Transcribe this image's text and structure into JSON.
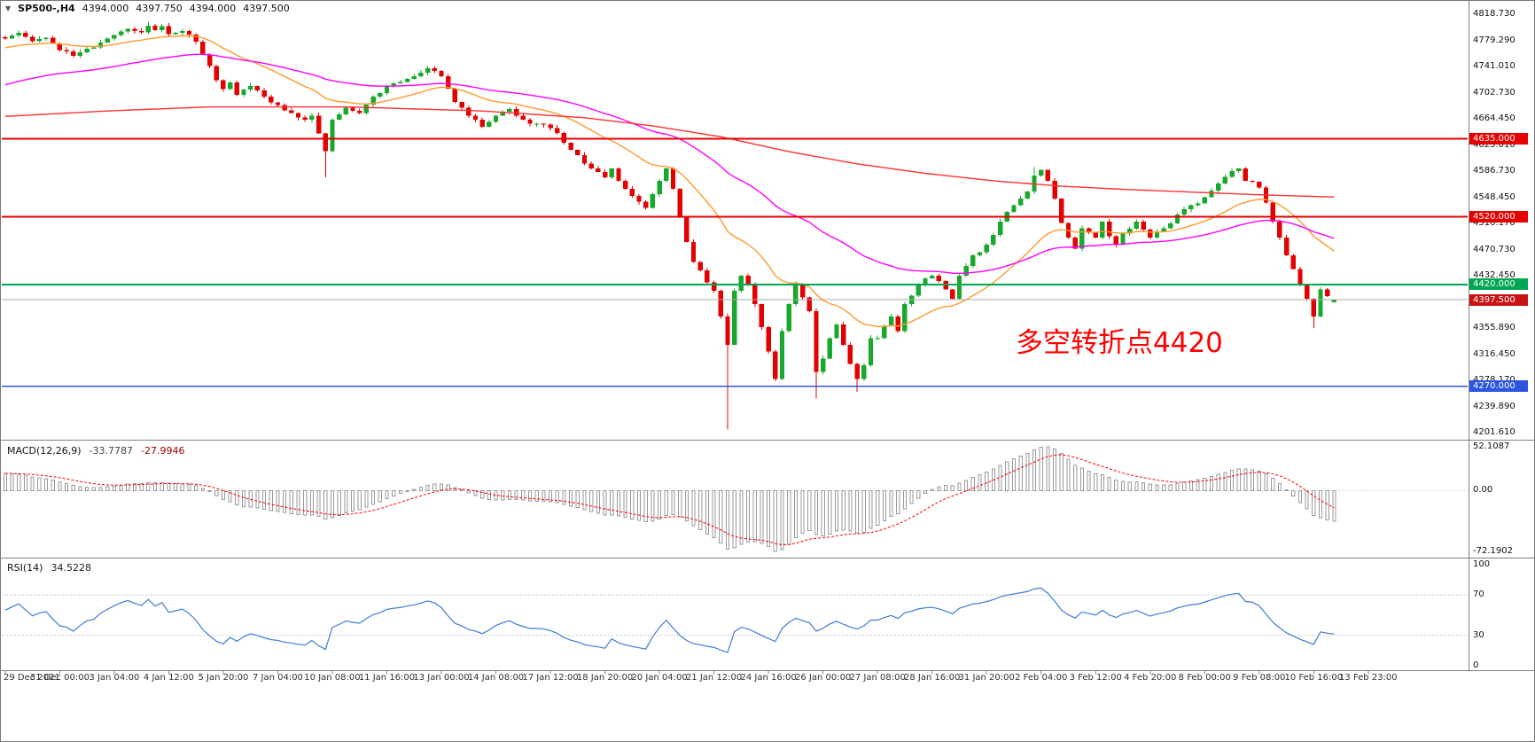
{
  "header": {
    "dropdown_icon": "▼",
    "title": "SP500-,H4",
    "open": "4394.000",
    "high": "4397.750",
    "low": "4394.000",
    "close": "4397.500"
  },
  "colors": {
    "background": "#FFFFFF",
    "candle_up": "#18A82C",
    "candle_down": "#E30000",
    "ma_fast": "#FF9A2E",
    "ma_medium": "#FF00FF",
    "ma_slow": "#FF3030",
    "current_price_line": "#A8A8A8",
    "current_price_tag": "#C81414",
    "macd_histogram": "#999999",
    "macd_signal": "#FF0000",
    "rsi_line": "#3E7BD6",
    "axis_text": "#111111",
    "separator": "#808080"
  },
  "chart_data": {
    "type": "candlestick",
    "title": "SP500-,H4",
    "symbol": "SP500-",
    "timeframe": "H4",
    "ohlc_display": {
      "open": 4394.0,
      "high": 4397.75,
      "low": 4394.0,
      "close": 4397.5
    },
    "n_bars": 196,
    "x_label_every_bars": 8,
    "x_labels": [
      "29 Dec 2021",
      "31 Dec 00:00",
      "3 Jan 04:00",
      "4 Jan 12:00",
      "5 Jan 20:00",
      "7 Jan 04:00",
      "10 Jan 08:00",
      "11 Jan 16:00",
      "13 Jan 00:00",
      "14 Jan 08:00",
      "17 Jan 12:00",
      "18 Jan 20:00",
      "20 Jan 04:00",
      "21 Jan 12:00",
      "24 Jan 16:00",
      "26 Jan 00:00",
      "27 Jan 08:00",
      "28 Jan 16:00",
      "31 Jan 20:00",
      "2 Feb 04:00",
      "3 Feb 12:00",
      "4 Feb 20:00",
      "8 Feb 00:00",
      "9 Feb 08:00",
      "10 Feb 16:00",
      "13 Feb 23:00"
    ],
    "y_axis": {
      "top": 4818.73,
      "bottom": 4201.61,
      "labels": [
        4818.73,
        4779.29,
        4741.01,
        4702.73,
        4664.45,
        4625.01,
        4586.73,
        4548.45,
        4510.17,
        4470.73,
        4432.45,
        4355.89,
        4316.45,
        4278.17,
        4239.89,
        4201.61
      ]
    },
    "price_lines": [
      {
        "value": 4635.0,
        "label": "4635.000",
        "color": "#E60000",
        "width": 1.6
      },
      {
        "value": 4520.0,
        "label": "4520.000",
        "color": "#E60000",
        "width": 1.6
      },
      {
        "value": 4420.0,
        "label": "4420.000",
        "color": "#00A651",
        "width": 1.8
      },
      {
        "value": 4270.0,
        "label": "4270.000",
        "color": "#2C56DD",
        "width": 1.8
      }
    ],
    "current_price": {
      "value": 4397.5,
      "label": "4397.500"
    },
    "annotation": {
      "text": "多空转折点4420",
      "color": "#FF0000"
    },
    "close_keyframes": [
      [
        0,
        4783
      ],
      [
        2,
        4791
      ],
      [
        4,
        4779
      ],
      [
        6,
        4784
      ],
      [
        8,
        4766
      ],
      [
        10,
        4757
      ],
      [
        12,
        4768
      ],
      [
        14,
        4777
      ],
      [
        16,
        4788
      ],
      [
        18,
        4797
      ],
      [
        20,
        4792
      ],
      [
        21,
        4802
      ],
      [
        22,
        4795
      ],
      [
        23,
        4801
      ],
      [
        24,
        4789
      ],
      [
        26,
        4794
      ],
      [
        28,
        4778
      ],
      [
        30,
        4742
      ],
      [
        31,
        4721
      ],
      [
        32,
        4708
      ],
      [
        33,
        4718
      ],
      [
        34,
        4700
      ],
      [
        36,
        4713
      ],
      [
        38,
        4697
      ],
      [
        40,
        4685
      ],
      [
        42,
        4673
      ],
      [
        44,
        4663
      ],
      [
        45,
        4669
      ],
      [
        46,
        4643
      ],
      [
        47,
        4617
      ],
      [
        48,
        4663
      ],
      [
        50,
        4681
      ],
      [
        52,
        4673
      ],
      [
        54,
        4697
      ],
      [
        56,
        4713
      ],
      [
        58,
        4719
      ],
      [
        60,
        4727
      ],
      [
        62,
        4739
      ],
      [
        64,
        4727
      ],
      [
        65,
        4709
      ],
      [
        66,
        4689
      ],
      [
        68,
        4669
      ],
      [
        70,
        4653
      ],
      [
        72,
        4669
      ],
      [
        74,
        4679
      ],
      [
        76,
        4663
      ],
      [
        78,
        4657
      ],
      [
        80,
        4651
      ],
      [
        82,
        4629
      ],
      [
        84,
        4611
      ],
      [
        86,
        4591
      ],
      [
        88,
        4578
      ],
      [
        89,
        4591
      ],
      [
        90,
        4573
      ],
      [
        92,
        4551
      ],
      [
        94,
        4533
      ],
      [
        96,
        4573
      ],
      [
        97,
        4591
      ],
      [
        98,
        4561
      ],
      [
        99,
        4521
      ],
      [
        100,
        4483
      ],
      [
        101,
        4453
      ],
      [
        102,
        4441
      ],
      [
        103,
        4423
      ],
      [
        104,
        4411
      ],
      [
        105,
        4373
      ],
      [
        106,
        4331
      ],
      [
        107,
        4411
      ],
      [
        108,
        4433
      ],
      [
        109,
        4419
      ],
      [
        110,
        4391
      ],
      [
        111,
        4357
      ],
      [
        112,
        4321
      ],
      [
        113,
        4281
      ],
      [
        114,
        4351
      ],
      [
        115,
        4391
      ],
      [
        116,
        4421
      ],
      [
        117,
        4401
      ],
      [
        118,
        4381
      ],
      [
        119,
        4291
      ],
      [
        120,
        4311
      ],
      [
        121,
        4341
      ],
      [
        122,
        4361
      ],
      [
        123,
        4331
      ],
      [
        124,
        4303
      ],
      [
        125,
        4281
      ],
      [
        126,
        4301
      ],
      [
        127,
        4341
      ],
      [
        128,
        4341
      ],
      [
        130,
        4373
      ],
      [
        131,
        4351
      ],
      [
        132,
        4391
      ],
      [
        134,
        4421
      ],
      [
        136,
        4433
      ],
      [
        138,
        4413
      ],
      [
        139,
        4399
      ],
      [
        140,
        4433
      ],
      [
        142,
        4463
      ],
      [
        144,
        4479
      ],
      [
        146,
        4513
      ],
      [
        148,
        4537
      ],
      [
        150,
        4557
      ],
      [
        151,
        4581
      ],
      [
        152,
        4589
      ],
      [
        153,
        4573
      ],
      [
        154,
        4547
      ],
      [
        155,
        4511
      ],
      [
        156,
        4489
      ],
      [
        157,
        4473
      ],
      [
        158,
        4503
      ],
      [
        160,
        4489
      ],
      [
        161,
        4513
      ],
      [
        162,
        4491
      ],
      [
        163,
        4479
      ],
      [
        164,
        4495
      ],
      [
        166,
        4513
      ],
      [
        168,
        4489
      ],
      [
        170,
        4503
      ],
      [
        172,
        4523
      ],
      [
        174,
        4537
      ],
      [
        176,
        4549
      ],
      [
        178,
        4569
      ],
      [
        180,
        4587
      ],
      [
        181,
        4591
      ],
      [
        182,
        4573
      ],
      [
        184,
        4563
      ],
      [
        185,
        4541
      ],
      [
        186,
        4513
      ],
      [
        187,
        4489
      ],
      [
        188,
        4463
      ],
      [
        189,
        4443
      ],
      [
        190,
        4419
      ],
      [
        191,
        4399
      ],
      [
        192,
        4373
      ],
      [
        193,
        4413
      ],
      [
        194,
        4403
      ],
      [
        195,
        4397.5
      ]
    ],
    "overrides": {
      "21": {
        "high": 4808
      },
      "47": {
        "low": 4578
      },
      "106": {
        "low": 4206
      },
      "119": {
        "low": 4252
      },
      "125": {
        "low": 4262
      },
      "151": {
        "high": 4593
      },
      "181": {
        "high": 4592
      },
      "192": {
        "low": 4356
      },
      "195": {
        "open": 4394.0,
        "high": 4397.75,
        "low": 4394.0,
        "close": 4397.5
      }
    },
    "noise": {
      "seed": 11,
      "amp": 3.4
    },
    "moving_averages": [
      {
        "name": "fast-ema",
        "type": "ema",
        "period": 21,
        "seed": 4768,
        "color": "#FF9A2E"
      },
      {
        "name": "medium-ema",
        "type": "ema",
        "period": 55,
        "seed": 4712,
        "color": "#FF00FF"
      },
      {
        "name": "slow-ma",
        "type": "keyframes",
        "color": "#FF3030",
        "points": [
          [
            0,
            4668
          ],
          [
            15,
            4676
          ],
          [
            30,
            4682
          ],
          [
            50,
            4682
          ],
          [
            70,
            4676
          ],
          [
            85,
            4666
          ],
          [
            95,
            4654
          ],
          [
            105,
            4638
          ],
          [
            115,
            4616
          ],
          [
            125,
            4598
          ],
          [
            135,
            4584
          ],
          [
            145,
            4573
          ],
          [
            155,
            4565
          ],
          [
            165,
            4560
          ],
          [
            175,
            4556
          ],
          [
            185,
            4552
          ],
          [
            195,
            4549
          ]
        ]
      }
    ],
    "macd": {
      "name": "MACD(12,26,9)",
      "fast": 12,
      "slow": 26,
      "signal": 9,
      "main_value": "-33.7787",
      "signal_value": "-27.9946",
      "max": 52.1087,
      "min": -72.1902,
      "seed_offset_fast": -5,
      "seed_offset_slow": -25,
      "axis_labels": [
        {
          "value": 52.1087,
          "label": "52.1087"
        },
        {
          "value": 0,
          "label": "0.00"
        },
        {
          "value": -72.1902,
          "label": "-72.1902"
        }
      ]
    },
    "rsi": {
      "name": "RSI(14)",
      "period": 14,
      "value": "34.5228",
      "seed_gain": 2.2,
      "seed_loss": 1.8,
      "levels": [
        {
          "value": 100,
          "label": "100",
          "dashed": false
        },
        {
          "value": 70,
          "label": "70",
          "dashed": true
        },
        {
          "value": 30,
          "label": "30",
          "dashed": true
        },
        {
          "value": 0,
          "label": "0",
          "dashed": false
        }
      ]
    }
  }
}
